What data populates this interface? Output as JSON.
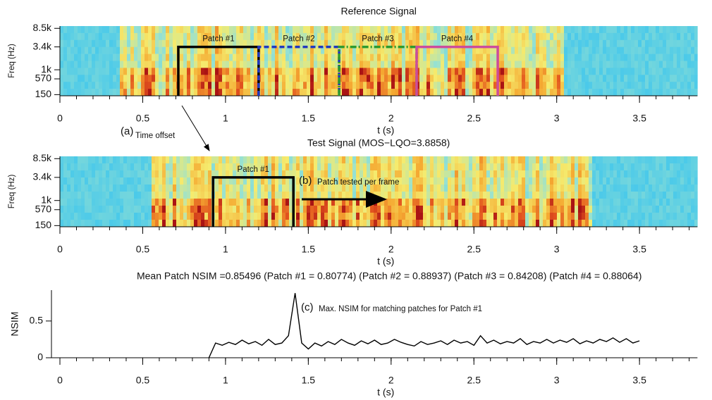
{
  "chart_data": [
    {
      "type": "spectrogram",
      "title": "Reference Signal",
      "xlabel": "t (s)",
      "ylabel": "Freq (Hz)",
      "xlim": [
        0,
        3.85
      ],
      "xticks": [
        0,
        0.5,
        1,
        1.5,
        2,
        2.5,
        3,
        3.5
      ],
      "xminorticks": [
        0,
        0.1,
        0.2,
        0.3,
        0.4,
        0.5,
        0.6,
        0.7,
        0.8,
        0.9,
        1,
        1.1,
        1.2,
        1.3,
        1.4,
        1.5,
        1.6,
        1.7,
        1.8,
        1.9,
        2,
        2.1,
        2.2,
        2.3,
        2.4,
        2.5,
        2.6,
        2.7,
        2.8,
        2.9,
        3,
        3.1,
        3.2,
        3.3,
        3.4,
        3.5,
        3.6,
        3.7,
        3.8
      ],
      "yscale": "erb",
      "ylim": [
        130,
        9500
      ],
      "yticks": [
        {
          "value": 8500,
          "label": "8.5k"
        },
        {
          "value": 3400,
          "label": "3.4k"
        },
        {
          "value": 1000,
          "label": "1k"
        },
        570,
        150
      ],
      "patches": [
        {
          "name": "Patch #1",
          "color": "#000000",
          "style": "solid",
          "start": 0.715,
          "end": 1.2,
          "top": 3400
        },
        {
          "name": "Patch #2",
          "color": "#2038c0",
          "style": "dashed",
          "start": 1.2,
          "end": 1.686,
          "top": 3400
        },
        {
          "name": "Patch #3",
          "color": "#2e9a2e",
          "style": "dashdot",
          "start": 1.686,
          "end": 2.154,
          "top": 3400
        },
        {
          "name": "Patch #4",
          "color": "#cc4c9c",
          "style": "solid",
          "start": 2.154,
          "end": 2.644,
          "top": 3400
        }
      ],
      "annotation": {
        "label": "(a)",
        "text": "Time offset"
      }
    },
    {
      "type": "spectrogram",
      "title": "Test Signal (MOS−LQO=3.8858)",
      "xlabel": "t (s)",
      "ylabel": "Freq (Hz)",
      "xlim": [
        0,
        3.85
      ],
      "xticks": [
        0,
        0.5,
        1,
        1.5,
        2,
        2.5,
        3,
        3.5
      ],
      "xminorticks": [
        0,
        0.1,
        0.2,
        0.3,
        0.4,
        0.5,
        0.6,
        0.7,
        0.8,
        0.9,
        1,
        1.1,
        1.2,
        1.3,
        1.4,
        1.5,
        1.6,
        1.7,
        1.8,
        1.9,
        2,
        2.1,
        2.2,
        2.3,
        2.4,
        2.5,
        2.6,
        2.7,
        2.8,
        2.9,
        3,
        3.1,
        3.2,
        3.3,
        3.4,
        3.5,
        3.6,
        3.7,
        3.8
      ],
      "yscale": "erb",
      "ylim": [
        130,
        9500
      ],
      "yticks": [
        {
          "value": 8500,
          "label": "8.5k"
        },
        {
          "value": 3400,
          "label": "3.4k"
        },
        {
          "value": 1000,
          "label": "1k"
        },
        570,
        150
      ],
      "patches": [
        {
          "name": "Patch #1",
          "color": "#000000",
          "style": "solid",
          "start": 0.925,
          "end": 1.41,
          "top": 3400
        }
      ],
      "annotation": {
        "label": "(b)",
        "text": "Patch tested per frame"
      }
    },
    {
      "type": "line",
      "title": "Mean Patch NSIM =0.85496 (Patch #1 = 0.80774) (Patch #2 = 0.88937) (Patch #3 = 0.84208) (Patch #4 = 0.88064)",
      "xlabel": "t (s)",
      "ylabel": "NSIM",
      "color": "#000000",
      "xlim": [
        0,
        3.85
      ],
      "xticks": [
        0,
        0.5,
        1,
        1.5,
        2,
        2.5,
        3,
        3.5
      ],
      "xminorticks": [
        0,
        0.1,
        0.2,
        0.3,
        0.4,
        0.5,
        0.6,
        0.7,
        0.8,
        0.9,
        1,
        1.1,
        1.2,
        1.3,
        1.4,
        1.5,
        1.6,
        1.7,
        1.8,
        1.9,
        2,
        2.1,
        2.2,
        2.3,
        2.4,
        2.5,
        2.6,
        2.7,
        2.8,
        2.9,
        3,
        3.1,
        3.2,
        3.3,
        3.4,
        3.5,
        3.6,
        3.7,
        3.8
      ],
      "ylim": [
        0,
        0.92
      ],
      "yticks": [
        0,
        0.5
      ],
      "x": [
        0.9,
        0.94,
        0.98,
        1.02,
        1.06,
        1.1,
        1.14,
        1.18,
        1.22,
        1.26,
        1.3,
        1.34,
        1.38,
        1.42,
        1.46,
        1.5,
        1.54,
        1.58,
        1.62,
        1.66,
        1.7,
        1.74,
        1.78,
        1.82,
        1.86,
        1.9,
        1.94,
        1.98,
        2.02,
        2.06,
        2.1,
        2.14,
        2.18,
        2.22,
        2.26,
        2.3,
        2.34,
        2.38,
        2.42,
        2.46,
        2.5,
        2.54,
        2.58,
        2.62,
        2.66,
        2.7,
        2.74,
        2.78,
        2.82,
        2.86,
        2.9,
        2.94,
        2.98,
        3.02,
        3.06,
        3.1,
        3.14,
        3.18,
        3.22,
        3.26,
        3.3,
        3.34,
        3.38,
        3.42,
        3.46,
        3.5
      ],
      "values": [
        0,
        0.2,
        0.17,
        0.21,
        0.18,
        0.24,
        0.19,
        0.22,
        0.17,
        0.25,
        0.18,
        0.2,
        0.3,
        0.88,
        0.2,
        0.12,
        0.2,
        0.16,
        0.22,
        0.18,
        0.25,
        0.2,
        0.17,
        0.23,
        0.19,
        0.24,
        0.18,
        0.2,
        0.25,
        0.21,
        0.18,
        0.16,
        0.22,
        0.18,
        0.2,
        0.23,
        0.18,
        0.24,
        0.2,
        0.22,
        0.17,
        0.3,
        0.2,
        0.24,
        0.19,
        0.22,
        0.2,
        0.26,
        0.18,
        0.22,
        0.2,
        0.25,
        0.2,
        0.24,
        0.21,
        0.26,
        0.19,
        0.23,
        0.2,
        0.25,
        0.22,
        0.27,
        0.21,
        0.26,
        0.2,
        0.23
      ],
      "annotation": {
        "label": "(c)",
        "text": "Max. NSIM for matching patches for Patch #1"
      }
    }
  ]
}
